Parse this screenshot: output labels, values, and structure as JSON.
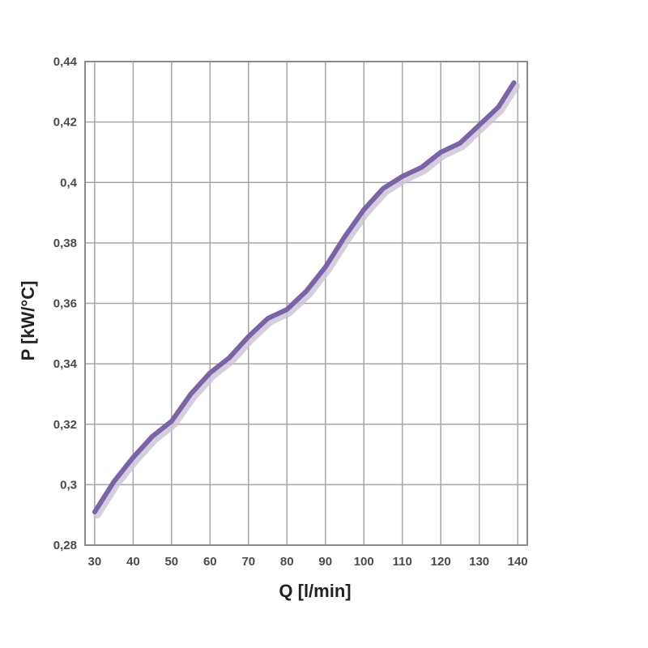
{
  "chart_data": {
    "type": "line",
    "title": "",
    "xlabel": "Q [l/min]",
    "ylabel": "P [kW/°C]",
    "xlim": [
      27.5,
      142.5
    ],
    "ylim": [
      0.28,
      0.44
    ],
    "x_ticks": [
      30,
      40,
      50,
      60,
      70,
      80,
      90,
      100,
      110,
      120,
      130,
      140
    ],
    "x_tick_labels": [
      "30",
      "40",
      "50",
      "60",
      "70",
      "80",
      "90",
      "100",
      "110",
      "120",
      "130",
      "140"
    ],
    "y_ticks": [
      0.28,
      0.3,
      0.32,
      0.34,
      0.36,
      0.38,
      0.4,
      0.42,
      0.44
    ],
    "y_tick_labels": [
      "0,28",
      "0,3",
      "0,32",
      "0,34",
      "0,36",
      "0,38",
      "0,4",
      "0,42",
      "0,44"
    ],
    "grid": true,
    "series": [
      {
        "color": "#7b64a6",
        "x": [
          30,
          35,
          40,
          45,
          50,
          55,
          60,
          65,
          70,
          75,
          80,
          85,
          90,
          95,
          100,
          105,
          110,
          115,
          120,
          125,
          130,
          135,
          139
        ],
        "y": [
          0.291,
          0.301,
          0.309,
          0.316,
          0.321,
          0.33,
          0.337,
          0.342,
          0.349,
          0.355,
          0.358,
          0.364,
          0.372,
          0.382,
          0.391,
          0.398,
          0.402,
          0.405,
          0.41,
          0.413,
          0.419,
          0.425,
          0.433
        ]
      }
    ]
  },
  "colors": {
    "grid": "#a6a6a6",
    "frame": "#8c8c8c",
    "line": "#7b64a6",
    "shadow": "#c9c2d6"
  }
}
